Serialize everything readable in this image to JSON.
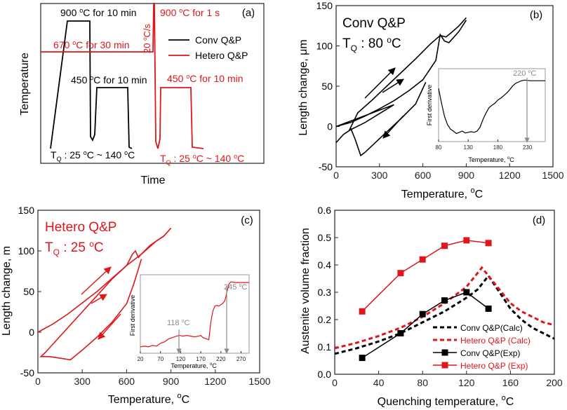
{
  "colors": {
    "conv": "#000000",
    "hetero": "#e0161b",
    "gray": "#8a8a8a",
    "axis": "#222222"
  },
  "chart_data": [
    {
      "panel": "(a)",
      "type": "line",
      "ylabel": "Temperature",
      "xlabel": "Time",
      "legend": [
        "Conv Q&P",
        "Hetero Q&P"
      ],
      "annotations": {
        "a1": "900 ",
        "a1sup": "o",
        "a1b": "C for 10 min",
        "a2": "670 ",
        "a2sup": "o",
        "a2b": "C for 30 min",
        "a3": "900 ",
        "a3sup": "o",
        "a3b": "C for 1 s",
        "a4": "20 ",
        "a4sup": "o",
        "a4b": "C/s",
        "a5": "450 ",
        "a5sup": "o",
        "a5b": "C for 10 min",
        "a6": "450 ",
        "a6sup": "o",
        "a6b": "C for 10 min",
        "tq1": "T",
        "tq1sub": "Q",
        "tq1b": " : 25 ",
        "tq1sup": "o",
        "tq1c": "C ~ 140 ",
        "tq1sup2": "o",
        "tq1d": "C",
        "tq2": "T",
        "tq2sub": "Q",
        "tq2b": " : 25 ",
        "tq2sup": "o",
        "tq2c": "C ~ 140 ",
        "tq2sup2": "o",
        "tq2d": "C"
      }
    },
    {
      "panel": "(b)",
      "type": "line",
      "title": "Conv Q&P",
      "tq": "T",
      "tqsub": "Q",
      "tqval": " : 80 ",
      "tqsup": "o",
      "tqunit": "C",
      "xlabel": "Temperature, ",
      "xlabel_sup": "o",
      "xlabel_unit": "C",
      "ylabel": "Length change, μm",
      "xticks": [
        "0",
        "300",
        "600",
        "900",
        "1200",
        "1500"
      ],
      "yticks": [
        "-50",
        "0",
        "50",
        "100",
        "150"
      ],
      "xlim": [
        0,
        1500
      ],
      "ylim": [
        -50,
        150
      ],
      "heating": [
        [
          0,
          0
        ],
        [
          100,
          5
        ],
        [
          200,
          13
        ],
        [
          300,
          22
        ],
        [
          400,
          32
        ],
        [
          500,
          44
        ],
        [
          600,
          58
        ],
        [
          690,
          82
        ],
        [
          720,
          114
        ],
        [
          750,
          106
        ],
        [
          780,
          104
        ],
        [
          800,
          108
        ],
        [
          850,
          118
        ],
        [
          900,
          132
        ]
      ],
      "cooling": [
        [
          900,
          135
        ],
        [
          850,
          125
        ],
        [
          800,
          117
        ],
        [
          760,
          111
        ],
        [
          720,
          113
        ],
        [
          650,
          102
        ],
        [
          550,
          84
        ],
        [
          450,
          67
        ],
        [
          350,
          50
        ],
        [
          250,
          33
        ],
        [
          150,
          17
        ],
        [
          90,
          -5
        ],
        [
          100,
          -2
        ],
        [
          130,
          -15
        ],
        [
          170,
          -36
        ],
        [
          200,
          -32
        ],
        [
          300,
          -15
        ],
        [
          450,
          10
        ],
        [
          550,
          28
        ],
        [
          620,
          55
        ]
      ],
      "heating_start": [
        [
          0,
          -20
        ],
        [
          50,
          -10
        ],
        [
          100,
          -4
        ],
        [
          200,
          5
        ],
        [
          300,
          16
        ],
        [
          400,
          27
        ]
      ],
      "inset": {
        "xlabel": "Temperature, ",
        "xlabel_sup": "o",
        "xlabel_unit": "C",
        "ylabel": "First derivative",
        "xticks": [
          "80",
          "130",
          "180",
          "230"
        ],
        "peak_label": "220 ",
        "peak_sup": "o",
        "peak_unit": "C",
        "xlim": [
          80,
          260
        ],
        "curve": [
          [
            80,
            0.78
          ],
          [
            85,
            0.55
          ],
          [
            90,
            0.35
          ],
          [
            95,
            0.22
          ],
          [
            100,
            0.15
          ],
          [
            105,
            0.12
          ],
          [
            110,
            0.08
          ],
          [
            115,
            0.1
          ],
          [
            120,
            0.12
          ],
          [
            125,
            0.09
          ],
          [
            130,
            0.1
          ],
          [
            135,
            0.11
          ],
          [
            140,
            0.1
          ],
          [
            145,
            0.12
          ],
          [
            150,
            0.18
          ],
          [
            155,
            0.3
          ],
          [
            160,
            0.4
          ],
          [
            165,
            0.48
          ],
          [
            170,
            0.52
          ],
          [
            175,
            0.55
          ],
          [
            180,
            0.6
          ],
          [
            185,
            0.63
          ],
          [
            190,
            0.67
          ],
          [
            195,
            0.71
          ],
          [
            200,
            0.76
          ],
          [
            205,
            0.82
          ],
          [
            210,
            0.86
          ],
          [
            215,
            0.88
          ],
          [
            220,
            0.9
          ],
          [
            225,
            0.91
          ],
          [
            235,
            0.9
          ],
          [
            245,
            0.9
          ],
          [
            260,
            0.9
          ]
        ]
      }
    },
    {
      "panel": "(c)",
      "type": "line",
      "title": "Hetero Q&P",
      "tq": "T",
      "tqsub": "Q",
      "tqval": " : 25 ",
      "tqsup": "o",
      "tqunit": "C",
      "xlabel": "Temperature, ",
      "xlabel_sup": "o",
      "xlabel_unit": "C",
      "ylabel": "Length change, \u001am",
      "xticks": [
        "0",
        "300",
        "600",
        "900",
        "1200",
        "1500"
      ],
      "yticks": [
        "-50",
        "0",
        "50",
        "100",
        "150"
      ],
      "xlim": [
        0,
        1500
      ],
      "ylim": [
        -50,
        150
      ],
      "heating": [
        [
          0,
          0
        ],
        [
          100,
          10
        ],
        [
          200,
          22
        ],
        [
          300,
          36
        ],
        [
          400,
          50
        ],
        [
          500,
          66
        ],
        [
          600,
          82
        ],
        [
          640,
          96
        ],
        [
          660,
          100
        ],
        [
          680,
          92
        ],
        [
          700,
          96
        ],
        [
          750,
          104
        ],
        [
          800,
          112
        ],
        [
          850,
          118
        ],
        [
          900,
          128
        ]
      ],
      "cooling": [
        [
          900,
          128
        ],
        [
          850,
          118
        ],
        [
          800,
          112
        ],
        [
          760,
          107
        ],
        [
          700,
          96
        ],
        [
          600,
          82
        ],
        [
          500,
          65
        ],
        [
          400,
          45
        ],
        [
          300,
          25
        ],
        [
          200,
          5
        ],
        [
          100,
          -15
        ],
        [
          50,
          -25
        ],
        [
          20,
          -30
        ],
        [
          80,
          -30
        ],
        [
          150,
          -32
        ],
        [
          220,
          -34
        ],
        [
          300,
          -22
        ],
        [
          400,
          -6
        ],
        [
          500,
          12
        ],
        [
          600,
          35
        ],
        [
          650,
          60
        ],
        [
          700,
          90
        ]
      ],
      "inset": {
        "xlabel": "Temperature, ",
        "xlabel_sup": "o",
        "xlabel_unit": "C",
        "ylabel": "First derivative",
        "xticks": [
          "20",
          "70",
          "120",
          "170",
          "220",
          "270"
        ],
        "peak1": "118 ",
        "peak1_sup": "o",
        "peak1_unit": "C",
        "peak2": "245 ",
        "peak2_sup": "o",
        "peak2_unit": "C",
        "xlim": [
          20,
          290
        ],
        "curve": [
          [
            20,
            0.05
          ],
          [
            30,
            0.06
          ],
          [
            40,
            0.05
          ],
          [
            50,
            0.07
          ],
          [
            60,
            0.06
          ],
          [
            70,
            0.1
          ],
          [
            80,
            0.12
          ],
          [
            90,
            0.16
          ],
          [
            100,
            0.18
          ],
          [
            110,
            0.2
          ],
          [
            118,
            0.21
          ],
          [
            125,
            0.2
          ],
          [
            135,
            0.21
          ],
          [
            145,
            0.2
          ],
          [
            155,
            0.19
          ],
          [
            165,
            0.2
          ],
          [
            170,
            0.21
          ],
          [
            175,
            0.18
          ],
          [
            180,
            0.17
          ],
          [
            185,
            0.16
          ],
          [
            190,
            0.15
          ],
          [
            195,
            0.4
          ],
          [
            200,
            0.55
          ],
          [
            205,
            0.62
          ],
          [
            210,
            0.63
          ],
          [
            215,
            0.62
          ],
          [
            220,
            0.64
          ],
          [
            225,
            0.66
          ],
          [
            230,
            0.7
          ],
          [
            235,
            0.82
          ],
          [
            240,
            0.93
          ],
          [
            245,
            0.96
          ],
          [
            255,
            0.95
          ],
          [
            270,
            0.95
          ],
          [
            290,
            0.95
          ]
        ]
      }
    },
    {
      "panel": "(d)",
      "type": "line",
      "xlabel": "Quenching temperature, ",
      "xlabel_sup": "o",
      "xlabel_unit": "C",
      "ylabel": "Austenite volume fraction",
      "xticks": [
        "0",
        "40",
        "80",
        "120",
        "160",
        "200"
      ],
      "yticks": [
        "0.0",
        "0.1",
        "0.2",
        "0.3",
        "0.4",
        "0.5",
        "0.6"
      ],
      "xlim": [
        0,
        200
      ],
      "ylim": [
        0,
        0.6
      ],
      "series": [
        {
          "name": "Conv Q&P(Calc)",
          "style": "dash",
          "color": "conv",
          "x": [
            0,
            20,
            40,
            60,
            80,
            100,
            120,
            130,
            140,
            150,
            160,
            170,
            180,
            190,
            200
          ],
          "y": [
            0.075,
            0.095,
            0.12,
            0.15,
            0.19,
            0.23,
            0.28,
            0.31,
            0.36,
            0.3,
            0.24,
            0.2,
            0.17,
            0.15,
            0.13
          ]
        },
        {
          "name": "Hetero Q&P (Calc)",
          "style": "dash",
          "color": "hetero",
          "x": [
            0,
            20,
            40,
            60,
            80,
            100,
            120,
            130,
            134,
            140,
            150,
            160,
            170,
            180,
            190,
            200
          ],
          "y": [
            0.095,
            0.115,
            0.14,
            0.17,
            0.21,
            0.26,
            0.32,
            0.37,
            0.39,
            0.36,
            0.31,
            0.26,
            0.23,
            0.21,
            0.19,
            0.18
          ]
        },
        {
          "name": "Conv Q&P(Exp)",
          "style": "solid",
          "color": "conv",
          "marker": "square",
          "x": [
            25,
            60,
            80,
            100,
            120,
            140
          ],
          "y": [
            0.06,
            0.15,
            0.22,
            0.27,
            0.3,
            0.24
          ]
        },
        {
          "name": "Hetero Q&P (Exp)",
          "style": "solid",
          "color": "hetero",
          "marker": "square",
          "x": [
            25,
            60,
            80,
            100,
            120,
            140
          ],
          "y": [
            0.23,
            0.37,
            0.42,
            0.47,
            0.49,
            0.48
          ]
        }
      ]
    }
  ]
}
